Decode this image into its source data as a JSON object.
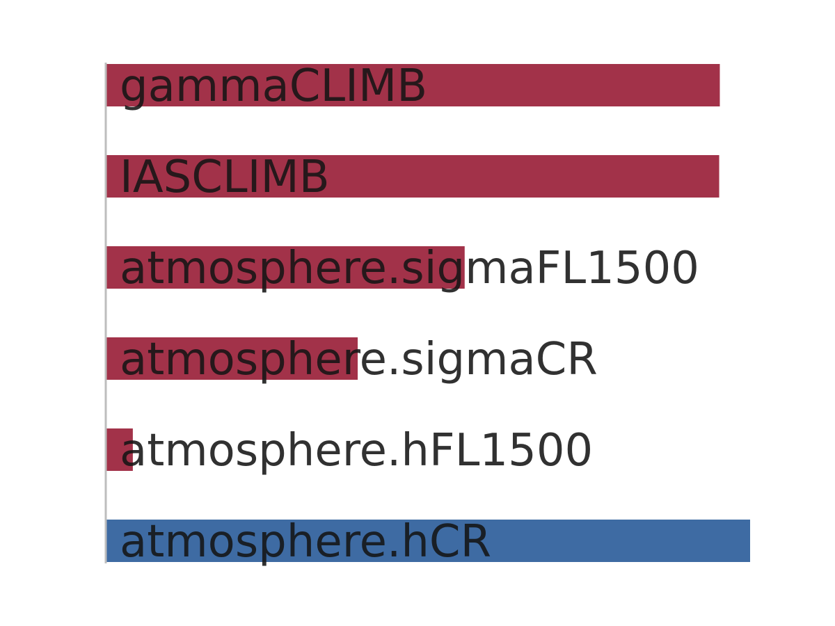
{
  "chart_data": {
    "type": "bar",
    "orientation": "horizontal",
    "title": "",
    "xlabel": "",
    "ylabel": "",
    "grid": false,
    "legend": "none",
    "xlim": [
      0,
      1.0
    ],
    "categories": [
      "gammaCLIMB",
      "IASCLIMB",
      "atmosphere.sigmaFL1500",
      "atmosphere.sigmaCR",
      "atmosphere.hFL1500",
      "atmosphere.hCR"
    ],
    "values": [
      0.953,
      0.952,
      0.557,
      0.391,
      0.042,
      1.0
    ],
    "colors": [
      "#a23249",
      "#a23249",
      "#a23249",
      "#a23249",
      "#a23249",
      "#3e6ba3"
    ],
    "axis_color": "#bdbdbd"
  }
}
